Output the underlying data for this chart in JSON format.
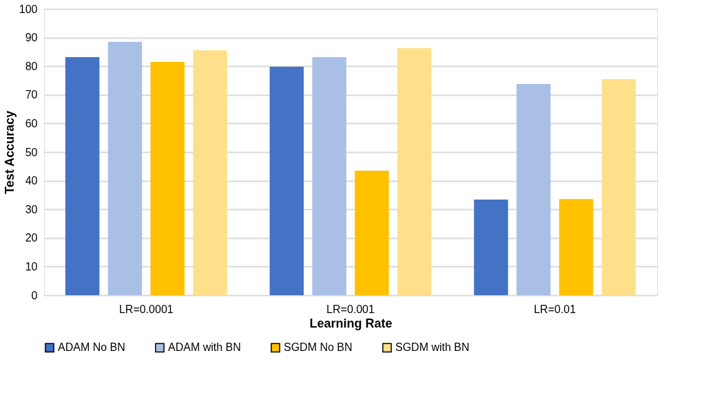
{
  "chart_data": {
    "type": "bar",
    "xlabel": "Learning Rate",
    "ylabel": "Test Accuracy",
    "categories": [
      "LR=0.0001",
      "LR=0.001",
      "LR=0.01"
    ],
    "series": [
      {
        "name": "ADAM No BN",
        "color": "#4472c4",
        "values": [
          83.2,
          79.8,
          33.4
        ]
      },
      {
        "name": "ADAM with BN",
        "color": "#a9bfe6",
        "values": [
          88.5,
          83.2,
          73.8
        ]
      },
      {
        "name": "SGDM No BN",
        "color": "#ffc000",
        "values": [
          81.5,
          43.5,
          33.6
        ]
      },
      {
        "name": "SGDM with BN",
        "color": "#ffe08a",
        "values": [
          85.6,
          86.3,
          75.5
        ]
      }
    ],
    "ylim": [
      0,
      100
    ],
    "yticks": [
      0,
      10,
      20,
      30,
      40,
      50,
      60,
      70,
      80,
      90,
      100
    ],
    "grid": "y",
    "legend": "bottom"
  }
}
